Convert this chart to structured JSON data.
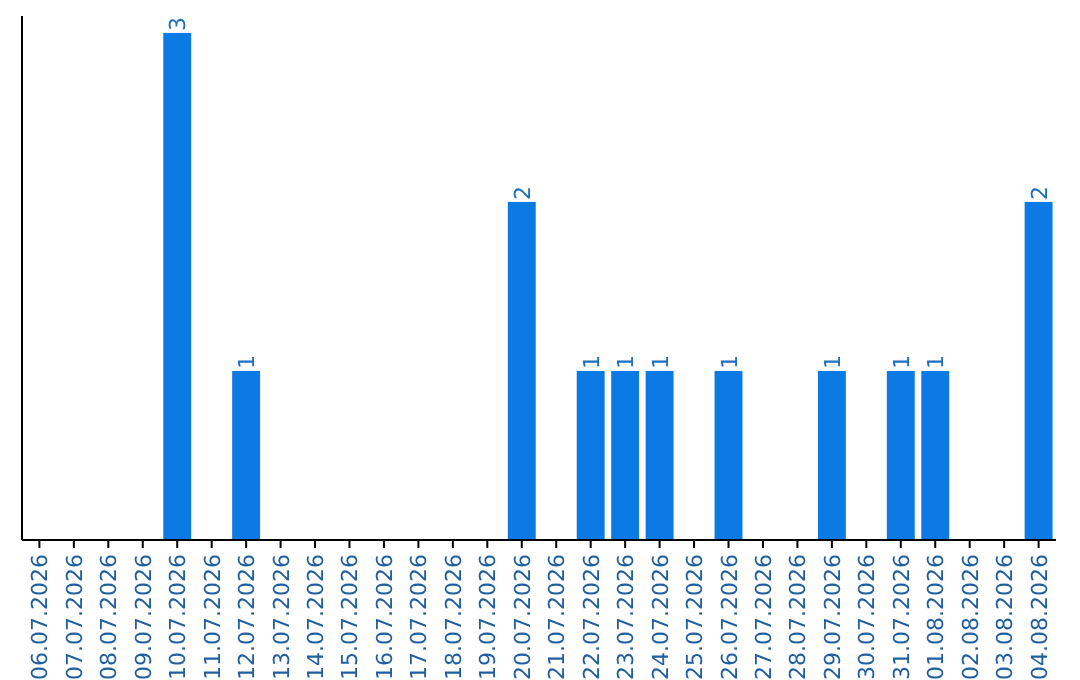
{
  "chart_data": {
    "type": "bar",
    "categories": [
      "06.07.2026",
      "07.07.2026",
      "08.07.2026",
      "09.07.2026",
      "10.07.2026",
      "11.07.2026",
      "12.07.2026",
      "13.07.2026",
      "14.07.2026",
      "15.07.2026",
      "16.07.2026",
      "17.07.2026",
      "18.07.2026",
      "19.07.2026",
      "20.07.2026",
      "21.07.2026",
      "22.07.2026",
      "23.07.2026",
      "24.07.2026",
      "25.07.2026",
      "26.07.2026",
      "27.07.2026",
      "28.07.2026",
      "29.07.2026",
      "30.07.2026",
      "31.07.2026",
      "01.08.2026",
      "02.08.2026",
      "03.08.2026",
      "04.08.2026"
    ],
    "values": [
      0,
      0,
      0,
      0,
      3,
      0,
      1,
      0,
      0,
      0,
      0,
      0,
      0,
      0,
      2,
      0,
      1,
      1,
      1,
      0,
      1,
      0,
      0,
      1,
      0,
      1,
      1,
      0,
      0,
      2
    ],
    "value_labels": [
      null,
      null,
      null,
      null,
      "3",
      null,
      "1",
      null,
      null,
      null,
      null,
      null,
      null,
      null,
      "2",
      null,
      "1",
      "1",
      "1",
      null,
      "1",
      null,
      null,
      "1",
      null,
      "1",
      "1",
      null,
      null,
      "2"
    ],
    "color": "#0b7ae4",
    "ylim": [
      0,
      3.1
    ],
    "tick_labels": "x"
  }
}
